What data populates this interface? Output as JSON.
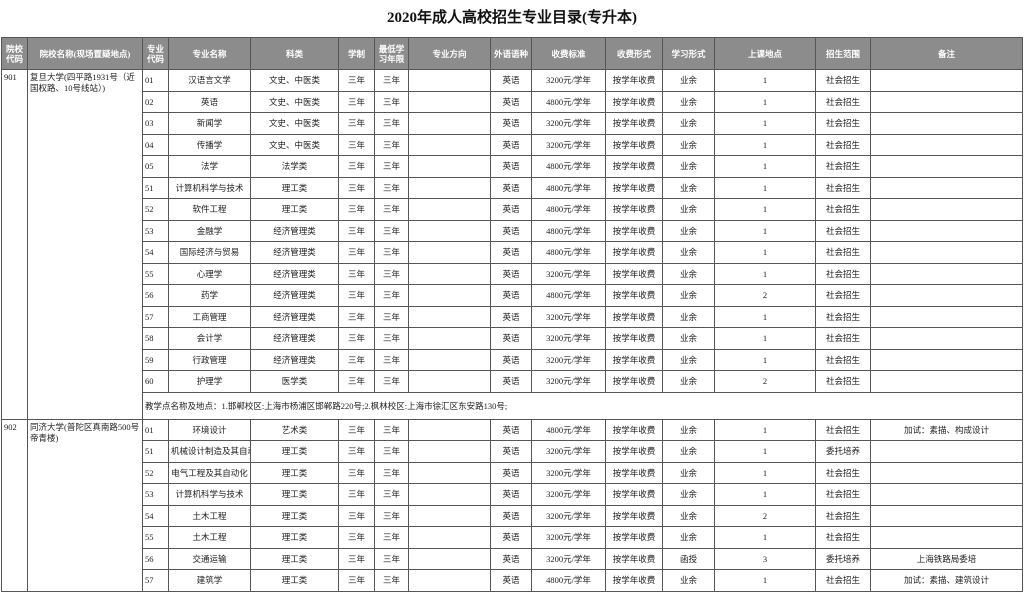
{
  "title": "2020年成人高校招生专业目录(专升本)",
  "table": {
    "headers": [
      "院校代码",
      "院校名称(现场置疑地点)",
      "专业代码",
      "专业名称",
      "科类",
      "学制",
      "最低学习年限",
      "专业方向",
      "外语语种",
      "收费标准",
      "收费形式",
      "学习形式",
      "上课地点",
      "招生范围",
      "备注"
    ],
    "schools": [
      {
        "code": "901",
        "name": "复旦大学(四平路1931号（近国权路、10号线站）)",
        "rows": [
          {
            "code": "01",
            "name": "汉语言文学",
            "subject": "文史、中医类",
            "duration": "三年",
            "min_years": "三年",
            "language": "英语",
            "fee": "3200元/学年",
            "fee_form": "按学年收费",
            "study_form": "业余",
            "location": "1",
            "scope": "社会招生"
          },
          {
            "code": "02",
            "name": "英语",
            "subject": "文史、中医类",
            "duration": "三年",
            "min_years": "三年",
            "language": "英语",
            "fee": "4800元/学年",
            "fee_form": "按学年收费",
            "study_form": "业余",
            "location": "1",
            "scope": "社会招生"
          },
          {
            "code": "03",
            "name": "新闻学",
            "subject": "文史、中医类",
            "duration": "三年",
            "min_years": "三年",
            "language": "英语",
            "fee": "3200元/学年",
            "fee_form": "按学年收费",
            "study_form": "业余",
            "location": "1",
            "scope": "社会招生"
          },
          {
            "code": "04",
            "name": "传播学",
            "subject": "文史、中医类",
            "duration": "三年",
            "min_years": "三年",
            "language": "英语",
            "fee": "3200元/学年",
            "fee_form": "按学年收费",
            "study_form": "业余",
            "location": "1",
            "scope": "社会招生"
          },
          {
            "code": "05",
            "name": "法学",
            "subject": "法学类",
            "duration": "三年",
            "min_years": "三年",
            "language": "英语",
            "fee": "4800元/学年",
            "fee_form": "按学年收费",
            "study_form": "业余",
            "location": "1",
            "scope": "社会招生"
          },
          {
            "code": "51",
            "name": "计算机科学与技术",
            "subject": "理工类",
            "duration": "三年",
            "min_years": "三年",
            "language": "英语",
            "fee": "4800元/学年",
            "fee_form": "按学年收费",
            "study_form": "业余",
            "location": "1",
            "scope": "社会招生"
          },
          {
            "code": "52",
            "name": "软件工程",
            "subject": "理工类",
            "duration": "三年",
            "min_years": "三年",
            "language": "英语",
            "fee": "4800元/学年",
            "fee_form": "按学年收费",
            "study_form": "业余",
            "location": "1",
            "scope": "社会招生"
          },
          {
            "code": "53",
            "name": "金融学",
            "subject": "经济管理类",
            "duration": "三年",
            "min_years": "三年",
            "language": "英语",
            "fee": "4800元/学年",
            "fee_form": "按学年收费",
            "study_form": "业余",
            "location": "1",
            "scope": "社会招生"
          },
          {
            "code": "54",
            "name": "国际经济与贸易",
            "subject": "经济管理类",
            "duration": "三年",
            "min_years": "三年",
            "language": "英语",
            "fee": "4800元/学年",
            "fee_form": "按学年收费",
            "study_form": "业余",
            "location": "1",
            "scope": "社会招生"
          },
          {
            "code": "55",
            "name": "心理学",
            "subject": "经济管理类",
            "duration": "三年",
            "min_years": "三年",
            "language": "英语",
            "fee": "3200元/学年",
            "fee_form": "按学年收费",
            "study_form": "业余",
            "location": "1",
            "scope": "社会招生"
          },
          {
            "code": "56",
            "name": "药学",
            "subject": "经济管理类",
            "duration": "三年",
            "min_years": "三年",
            "language": "英语",
            "fee": "4800元/学年",
            "fee_form": "按学年收费",
            "study_form": "业余",
            "location": "2",
            "scope": "社会招生"
          },
          {
            "code": "57",
            "name": "工商管理",
            "subject": "经济管理类",
            "duration": "三年",
            "min_years": "三年",
            "language": "英语",
            "fee": "3200元/学年",
            "fee_form": "按学年收费",
            "study_form": "业余",
            "location": "1",
            "scope": "社会招生"
          },
          {
            "code": "58",
            "name": "会计学",
            "subject": "经济管理类",
            "duration": "三年",
            "min_years": "三年",
            "language": "英语",
            "fee": "3200元/学年",
            "fee_form": "按学年收费",
            "study_form": "业余",
            "location": "1",
            "scope": "社会招生"
          },
          {
            "code": "59",
            "name": "行政管理",
            "subject": "经济管理类",
            "duration": "三年",
            "min_years": "三年",
            "language": "英语",
            "fee": "3200元/学年",
            "fee_form": "按学年收费",
            "study_form": "业余",
            "location": "1",
            "scope": "社会招生"
          },
          {
            "code": "60",
            "name": "护理学",
            "subject": "医学类",
            "duration": "三年",
            "min_years": "三年",
            "language": "英语",
            "fee": "3200元/学年",
            "fee_form": "按学年收费",
            "study_form": "业余",
            "location": "2",
            "scope": "社会招生"
          }
        ],
        "note": "教学点名称及地点：1.邯郸校区:上海市杨浦区邯郸路220号;2.枫林校区:上海市徐汇区东安路130号;"
      },
      {
        "code": "902",
        "name": "同济大学(普陀区真南路500号帝青楼)",
        "rows": [
          {
            "code": "01",
            "name": "环境设计",
            "subject": "艺术类",
            "duration": "三年",
            "min_years": "三年",
            "language": "英语",
            "fee": "4800元/学年",
            "fee_form": "按学年收费",
            "study_form": "业余",
            "location": "1",
            "scope": "社会招生",
            "remark": "加试：素描、构成设计"
          },
          {
            "code": "51",
            "name": "机械设计制造及其自动化",
            "subject": "理工类",
            "duration": "三年",
            "min_years": "三年",
            "language": "英语",
            "fee": "3200元/学年",
            "fee_form": "按学年收费",
            "study_form": "业余",
            "location": "1",
            "scope": "委托培养"
          },
          {
            "code": "52",
            "name": "电气工程及其自动化",
            "subject": "理工类",
            "duration": "三年",
            "min_years": "三年",
            "language": "英语",
            "fee": "3200元/学年",
            "fee_form": "按学年收费",
            "study_form": "业余",
            "location": "1",
            "scope": "社会招生"
          },
          {
            "code": "53",
            "name": "计算机科学与技术",
            "subject": "理工类",
            "duration": "三年",
            "min_years": "三年",
            "language": "英语",
            "fee": "3200元/学年",
            "fee_form": "按学年收费",
            "study_form": "业余",
            "location": "1",
            "scope": "社会招生"
          },
          {
            "code": "54",
            "name": "土木工程",
            "subject": "理工类",
            "duration": "三年",
            "min_years": "三年",
            "language": "英语",
            "fee": "3200元/学年",
            "fee_form": "按学年收费",
            "study_form": "业余",
            "location": "2",
            "scope": "社会招生"
          },
          {
            "code": "55",
            "name": "土木工程",
            "subject": "理工类",
            "duration": "三年",
            "min_years": "三年",
            "language": "英语",
            "fee": "3200元/学年",
            "fee_form": "按学年收费",
            "study_form": "业余",
            "location": "1",
            "scope": "社会招生"
          },
          {
            "code": "56",
            "name": "交通运输",
            "subject": "理工类",
            "duration": "三年",
            "min_years": "三年",
            "language": "英语",
            "fee": "3200元/学年",
            "fee_form": "按学年收费",
            "study_form": "函授",
            "location": "3",
            "scope": "委托培养",
            "remark": "上海铁路局委培"
          },
          {
            "code": "57",
            "name": "建筑学",
            "subject": "理工类",
            "duration": "三年",
            "min_years": "三年",
            "language": "英语",
            "fee": "4800元/学年",
            "fee_form": "按学年收费",
            "study_form": "业余",
            "location": "1",
            "scope": "社会招生",
            "remark": "加试：素描、建筑设计"
          }
        ]
      }
    ]
  }
}
